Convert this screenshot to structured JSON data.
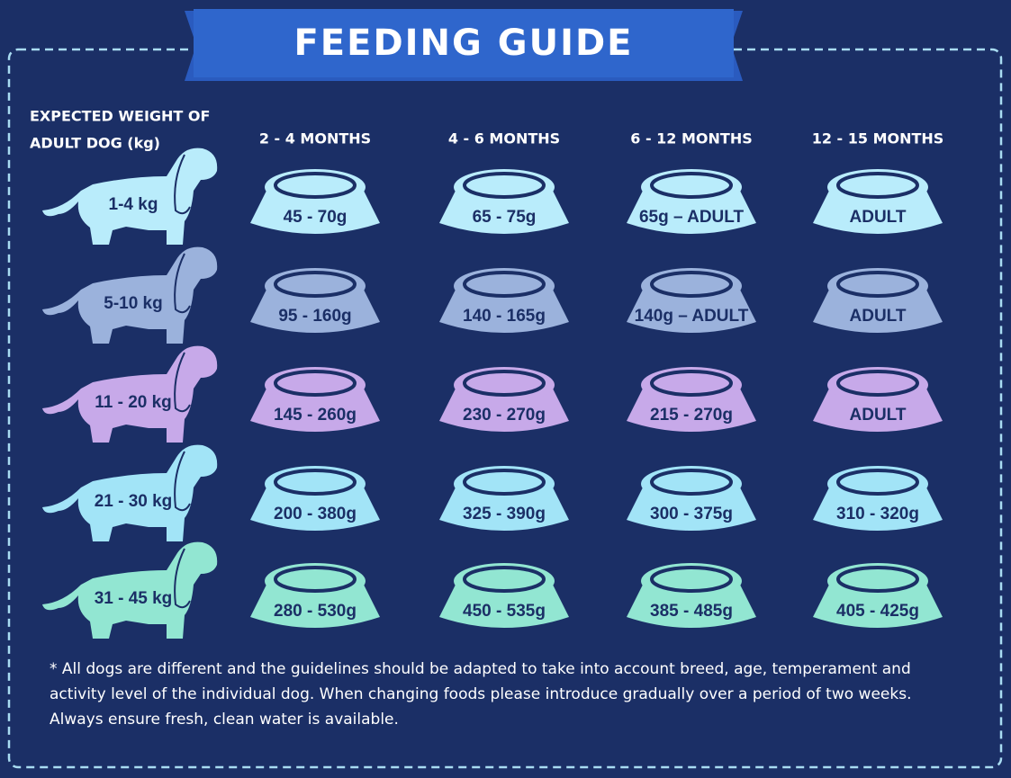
{
  "title": "FEEDING GUIDE",
  "row_header": [
    "EXPECTED WEIGHT OF",
    "ADULT DOG (kg)"
  ],
  "columns": [
    "2 - 4 MONTHS",
    "4 - 6 MONTHS",
    "6 - 12 MONTHS",
    "12 - 15 MONTHS"
  ],
  "rows": [
    {
      "weight": "1-4 kg",
      "portions": [
        "45 - 70g",
        "65 - 75g",
        "65g – ADULT",
        "ADULT"
      ]
    },
    {
      "weight": "5-10 kg",
      "portions": [
        "95 - 160g",
        "140 - 165g",
        "140g – ADULT",
        "ADULT"
      ]
    },
    {
      "weight": "11 - 20 kg",
      "portions": [
        "145 - 260g",
        "230 - 270g",
        "215 - 270g",
        "ADULT"
      ]
    },
    {
      "weight": "21 - 30 kg",
      "portions": [
        "200 - 380g",
        "325 - 390g",
        "300 - 375g",
        "310 - 320g"
      ]
    },
    {
      "weight": "31 - 45 kg",
      "portions": [
        "280 - 530g",
        "450 - 535g",
        "385 - 485g",
        "405 - 425g"
      ]
    }
  ],
  "footnote": "* All dogs are different and the guidelines should be adapted to take into account breed, age, temperament and activity level of the individual dog. When changing foods please introduce gradually over a period of two weeks. Always ensure fresh, clean water is available."
}
